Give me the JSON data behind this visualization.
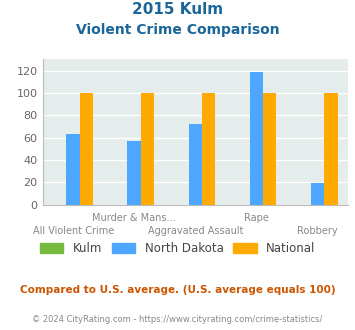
{
  "title_line1": "2015 Kulm",
  "title_line2": "Violent Crime Comparison",
  "categories": [
    "All Violent Crime",
    "Murder & Mans...",
    "Aggravated Assault",
    "Rape",
    "Robbery"
  ],
  "upper_labels": {
    "1": "Murder & Mans...",
    "3": "Rape"
  },
  "lower_labels": {
    "0": "All Violent Crime",
    "2": "Aggravated Assault",
    "4": "Robbery"
  },
  "kulm_values": [
    0,
    0,
    0,
    0,
    0
  ],
  "nd_values": [
    63,
    57,
    72,
    119,
    19
  ],
  "national_values": [
    100,
    100,
    100,
    100,
    100
  ],
  "kulm_color": "#76bb3f",
  "nd_color": "#4da6ff",
  "national_color": "#ffaa00",
  "ylim": [
    0,
    130
  ],
  "yticks": [
    0,
    20,
    40,
    60,
    80,
    100,
    120
  ],
  "legend_labels": [
    "Kulm",
    "North Dakota",
    "National"
  ],
  "footnote1": "Compared to U.S. average. (U.S. average equals 100)",
  "footnote2": "© 2024 CityRating.com - https://www.cityrating.com/crime-statistics/",
  "title_color": "#1a6699",
  "footnote1_color": "#cc5500",
  "footnote2_color": "#888888",
  "plot_bg_color": "#e4ecec"
}
